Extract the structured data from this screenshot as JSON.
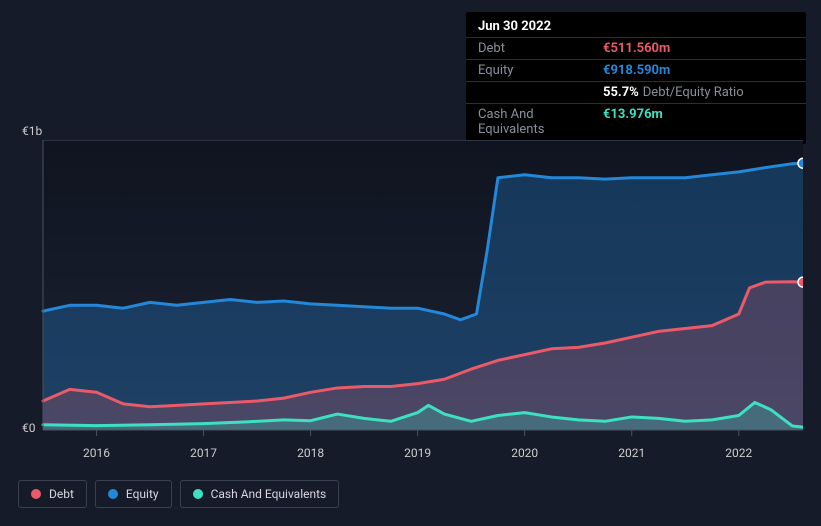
{
  "chart": {
    "type": "area",
    "background": "#151b28",
    "plot_background_gradient": [
      "#0f1420",
      "#1b2232"
    ],
    "ylim": [
      0,
      1000000000
    ],
    "y_ticks": [
      {
        "value": 0,
        "label": "€0"
      },
      {
        "value": 1000000000,
        "label": "€1b"
      }
    ],
    "x_years": [
      2016,
      2017,
      2018,
      2019,
      2020,
      2021,
      2022
    ],
    "x_start": 2015.5,
    "x_end": 2022.6,
    "axis_color": "#4a5060",
    "grid_color": "#30384a",
    "series": [
      {
        "name": "Equity",
        "color": "#2388d9",
        "fill_opacity": 0.3,
        "line_width": 3,
        "points": [
          [
            2015.5,
            410
          ],
          [
            2015.75,
            430
          ],
          [
            2016.0,
            430
          ],
          [
            2016.25,
            420
          ],
          [
            2016.5,
            440
          ],
          [
            2016.75,
            430
          ],
          [
            2017.0,
            440
          ],
          [
            2017.25,
            450
          ],
          [
            2017.5,
            440
          ],
          [
            2017.75,
            445
          ],
          [
            2018.0,
            435
          ],
          [
            2018.25,
            430
          ],
          [
            2018.5,
            425
          ],
          [
            2018.75,
            420
          ],
          [
            2019.0,
            420
          ],
          [
            2019.25,
            400
          ],
          [
            2019.4,
            380
          ],
          [
            2019.55,
            400
          ],
          [
            2019.65,
            620
          ],
          [
            2019.75,
            870
          ],
          [
            2020.0,
            880
          ],
          [
            2020.25,
            870
          ],
          [
            2020.5,
            870
          ],
          [
            2020.75,
            865
          ],
          [
            2021.0,
            870
          ],
          [
            2021.25,
            870
          ],
          [
            2021.5,
            870
          ],
          [
            2021.75,
            880
          ],
          [
            2022.0,
            890
          ],
          [
            2022.25,
            905
          ],
          [
            2022.5,
            918
          ],
          [
            2022.6,
            920
          ]
        ]
      },
      {
        "name": "Debt",
        "color": "#eb5a68",
        "fill_opacity": 0.22,
        "line_width": 3,
        "points": [
          [
            2015.5,
            100
          ],
          [
            2015.75,
            140
          ],
          [
            2016.0,
            130
          ],
          [
            2016.25,
            90
          ],
          [
            2016.5,
            80
          ],
          [
            2016.75,
            85
          ],
          [
            2017.0,
            90
          ],
          [
            2017.25,
            95
          ],
          [
            2017.5,
            100
          ],
          [
            2017.75,
            110
          ],
          [
            2018.0,
            130
          ],
          [
            2018.25,
            145
          ],
          [
            2018.5,
            150
          ],
          [
            2018.75,
            150
          ],
          [
            2019.0,
            160
          ],
          [
            2019.25,
            175
          ],
          [
            2019.5,
            210
          ],
          [
            2019.75,
            240
          ],
          [
            2020.0,
            260
          ],
          [
            2020.25,
            280
          ],
          [
            2020.5,
            285
          ],
          [
            2020.75,
            300
          ],
          [
            2021.0,
            320
          ],
          [
            2021.25,
            340
          ],
          [
            2021.5,
            350
          ],
          [
            2021.75,
            360
          ],
          [
            2022.0,
            400
          ],
          [
            2022.1,
            490
          ],
          [
            2022.25,
            510
          ],
          [
            2022.5,
            511
          ],
          [
            2022.6,
            510
          ]
        ]
      },
      {
        "name": "Cash And Equivalents",
        "color": "#3de0c2",
        "fill_opacity": 0.25,
        "line_width": 3,
        "points": [
          [
            2015.5,
            18
          ],
          [
            2016.0,
            15
          ],
          [
            2016.5,
            18
          ],
          [
            2017.0,
            22
          ],
          [
            2017.4,
            28
          ],
          [
            2017.75,
            35
          ],
          [
            2018.0,
            32
          ],
          [
            2018.25,
            55
          ],
          [
            2018.5,
            40
          ],
          [
            2018.75,
            30
          ],
          [
            2019.0,
            60
          ],
          [
            2019.1,
            85
          ],
          [
            2019.25,
            55
          ],
          [
            2019.5,
            30
          ],
          [
            2019.75,
            50
          ],
          [
            2020.0,
            60
          ],
          [
            2020.25,
            45
          ],
          [
            2020.5,
            35
          ],
          [
            2020.75,
            30
          ],
          [
            2021.0,
            45
          ],
          [
            2021.25,
            40
          ],
          [
            2021.5,
            30
          ],
          [
            2021.75,
            35
          ],
          [
            2022.0,
            50
          ],
          [
            2022.15,
            95
          ],
          [
            2022.3,
            70
          ],
          [
            2022.5,
            14
          ],
          [
            2022.6,
            10
          ]
        ]
      }
    ],
    "marker_x": 2022.6,
    "markers": [
      {
        "series": "Equity",
        "y": 920,
        "color": "#2388d9"
      },
      {
        "series": "Debt",
        "y": 510,
        "color": "#eb5a68"
      }
    ]
  },
  "tooltip": {
    "date": "Jun 30 2022",
    "rows": [
      {
        "label": "Debt",
        "value": "€511.560m",
        "color": "#eb5a68"
      },
      {
        "label": "Equity",
        "value": "€918.590m",
        "color": "#2388d9"
      },
      {
        "label": "",
        "value": "55.7%",
        "color": "#ffffff",
        "extra": "Debt/Equity Ratio"
      },
      {
        "label": "Cash And Equivalents",
        "value": "€13.976m",
        "color": "#3de0c2"
      }
    ]
  },
  "legend": [
    {
      "label": "Debt",
      "color": "#eb5a68"
    },
    {
      "label": "Equity",
      "color": "#2388d9"
    },
    {
      "label": "Cash And Equivalents",
      "color": "#3de0c2"
    }
  ]
}
